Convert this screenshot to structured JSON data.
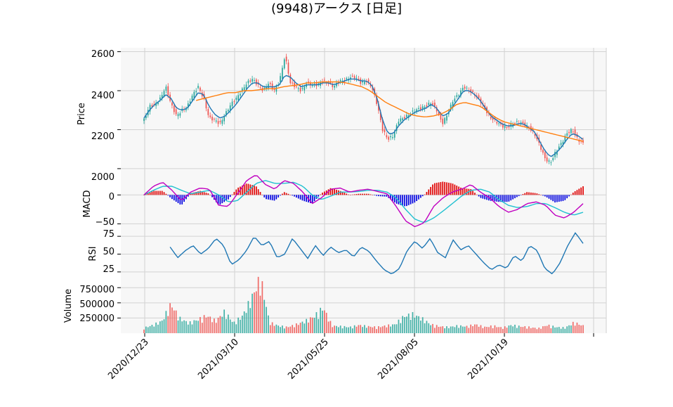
{
  "chart_data": {
    "type": "candlestick",
    "title": "(9948)アークス  [日足]",
    "colors": {
      "up": "#26a69a",
      "down": "#ef5350",
      "panel_bg": "#f7f7f7",
      "grid": "#d2d2d2",
      "ma_short": "#1f77b4",
      "ma_long": "#ff7f0e",
      "macd_line": "#c000c0",
      "signal_line": "#20c0d0",
      "hist_pos": "#e00000",
      "hist_neg": "#0000e0",
      "rsi": "#1f77b4"
    },
    "x_tick_labels": [
      "2020/12/23",
      "2021/03/10",
      "2021/05/25",
      "2021/08/05",
      "2021/10/19"
    ],
    "panels": {
      "price": {
        "ylabel": "Price",
        "ylim": [
          1960,
          2620
        ],
        "yticks": [
          "2000",
          "2200",
          "2400",
          "2600"
        ],
        "close_keypoints": [
          2250,
          2320,
          2330,
          2360,
          2420,
          2330,
          2270,
          2300,
          2320,
          2380,
          2420,
          2360,
          2260,
          2250,
          2230,
          2280,
          2330,
          2360,
          2400,
          2440,
          2460,
          2430,
          2400,
          2440,
          2400,
          2450,
          2580,
          2440,
          2420,
          2400,
          2440,
          2430,
          2430,
          2450,
          2440,
          2420,
          2450,
          2450,
          2470,
          2470,
          2440,
          2450,
          2420,
          2330,
          2200,
          2150,
          2170,
          2250,
          2260,
          2280,
          2300,
          2310,
          2320,
          2340,
          2300,
          2230,
          2280,
          2350,
          2380,
          2420,
          2400,
          2380,
          2350,
          2300,
          2260,
          2240,
          2220,
          2210,
          2230,
          2240,
          2230,
          2210,
          2180,
          2120,
          2050,
          2030,
          2090,
          2130,
          2180,
          2200,
          2150,
          2130
        ],
        "ma_short_keypoints": [
          2260,
          2300,
          2330,
          2350,
          2380,
          2360,
          2310,
          2300,
          2310,
          2350,
          2390,
          2380,
          2320,
          2280,
          2260,
          2270,
          2300,
          2330,
          2370,
          2410,
          2440,
          2440,
          2420,
          2420,
          2420,
          2430,
          2480,
          2470,
          2440,
          2420,
          2430,
          2430,
          2430,
          2440,
          2440,
          2430,
          2440,
          2450,
          2460,
          2460,
          2450,
          2450,
          2430,
          2360,
          2250,
          2180,
          2180,
          2220,
          2250,
          2270,
          2290,
          2300,
          2310,
          2330,
          2310,
          2270,
          2280,
          2320,
          2360,
          2400,
          2400,
          2380,
          2350,
          2310,
          2270,
          2250,
          2230,
          2220,
          2220,
          2230,
          2230,
          2210,
          2190,
          2140,
          2090,
          2060,
          2080,
          2110,
          2150,
          2180,
          2170,
          2150
        ],
        "ma_long_keypoints": [
          2350,
          2360,
          2370,
          2380,
          2390,
          2390,
          2400,
          2400,
          2405,
          2410,
          2410,
          2420,
          2425,
          2430,
          2440,
          2440,
          2445,
          2445,
          2445,
          2440,
          2430,
          2420,
          2400,
          2370,
          2340,
          2320,
          2300,
          2280,
          2270,
          2265,
          2270,
          2280,
          2300,
          2330,
          2340,
          2330,
          2320,
          2290,
          2260,
          2240,
          2230,
          2220,
          2210,
          2200,
          2190,
          2180,
          2170,
          2160,
          2150,
          2140
        ]
      },
      "macd": {
        "ylabel": "MACD",
        "ylim": [
          -58,
          32
        ],
        "yticks": [
          "−50",
          "0"
        ],
        "macd_keypoints": [
          0,
          15,
          22,
          8,
          -10,
          5,
          12,
          10,
          -18,
          -20,
          2,
          25,
          35,
          18,
          10,
          25,
          20,
          5,
          -15,
          -5,
          10,
          12,
          5,
          8,
          10,
          6,
          2,
          -20,
          -45,
          -55,
          -48,
          -20,
          -5,
          5,
          10,
          18,
          5,
          -5,
          -20,
          -30,
          -25,
          -15,
          -12,
          -18,
          -35,
          -40,
          -30,
          -15
        ],
        "signal_keypoints": [
          0,
          8,
          15,
          15,
          8,
          2,
          5,
          8,
          0,
          -12,
          -10,
          5,
          20,
          25,
          20,
          20,
          22,
          15,
          0,
          -8,
          -2,
          5,
          5,
          6,
          8,
          8,
          5,
          -5,
          -25,
          -42,
          -48,
          -40,
          -28,
          -15,
          -2,
          8,
          10,
          5,
          -8,
          -18,
          -22,
          -20,
          -15,
          -15,
          -22,
          -30,
          -35,
          -30
        ],
        "hist_keypoints": [
          0,
          7,
          7,
          -7,
          -18,
          3,
          7,
          2,
          -18,
          -8,
          12,
          20,
          15,
          -7,
          -10,
          5,
          -2,
          -10,
          -15,
          3,
          12,
          7,
          0,
          2,
          2,
          -2,
          -3,
          -15,
          -20,
          -13,
          0,
          20,
          23,
          20,
          12,
          10,
          -5,
          -10,
          -12,
          -12,
          -3,
          5,
          3,
          -3,
          -13,
          -10,
          5,
          15
        ]
      },
      "rsi": {
        "ylabel": "RSI",
        "ylim": [
          14,
          86
        ],
        "yticks": [
          "25",
          "50",
          "75"
        ],
        "rsi_keypoints": [
          60,
          45,
          55,
          62,
          50,
          58,
          72,
          62,
          35,
          42,
          55,
          75,
          62,
          68,
          45,
          50,
          72,
          58,
          44,
          62,
          48,
          60,
          52,
          56,
          46,
          60,
          54,
          40,
          28,
          22,
          30,
          55,
          68,
          58,
          72,
          52,
          45,
          70,
          56,
          62,
          50,
          38,
          28,
          35,
          30,
          48,
          40,
          62,
          55,
          30,
          22,
          38,
          62,
          80,
          65
        ]
      },
      "volume": {
        "ylabel": "Volume",
        "ylim": [
          0,
          880000
        ],
        "yticks": [
          "250000",
          "500000",
          "750000"
        ],
        "volume_keypoints": [
          80000,
          120000,
          180000,
          430000,
          220000,
          150000,
          200000,
          260000,
          180000,
          320000,
          150000,
          260000,
          520000,
          830000,
          160000,
          110000,
          90000,
          130000,
          180000,
          250000,
          380000,
          110000,
          100000,
          90000,
          120000,
          100000,
          90000,
          110000,
          130000,
          250000,
          280000,
          220000,
          130000,
          100000,
          90000,
          110000,
          100000,
          130000,
          90000,
          110000,
          80000,
          120000,
          100000,
          90000,
          70000,
          120000,
          90000,
          80000,
          160000,
          110000
        ]
      }
    }
  }
}
